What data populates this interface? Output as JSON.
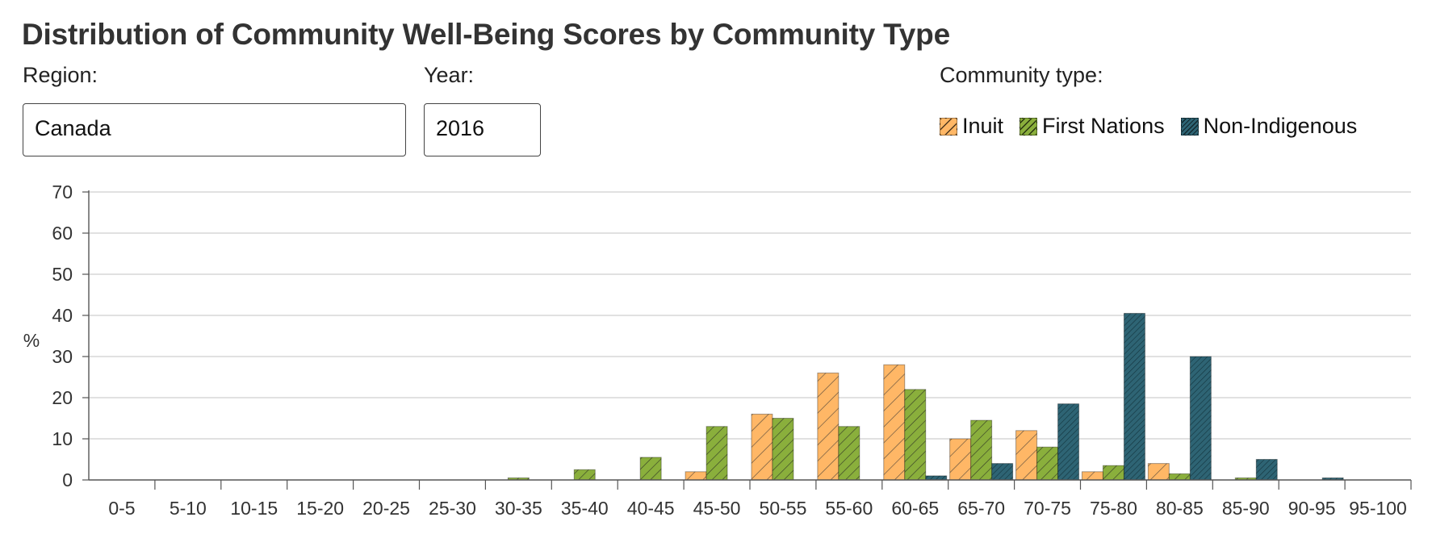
{
  "title": "Distribution of Community Well-Being Scores by Community Type",
  "controls": {
    "region_label": "Region:",
    "region_value": "Canada",
    "year_label": "Year:",
    "year_value": "2016",
    "community_label": "Community type:"
  },
  "colors": {
    "Inuit": "#ffb766",
    "First Nations": "#8aaf3c",
    "Non-Indigenous": "#2e6474"
  },
  "chart_data": {
    "type": "bar",
    "categories": [
      "0-5",
      "5-10",
      "10-15",
      "15-20",
      "20-25",
      "25-30",
      "30-35",
      "35-40",
      "40-45",
      "45-50",
      "50-55",
      "55-60",
      "60-65",
      "65-70",
      "70-75",
      "75-80",
      "80-85",
      "85-90",
      "90-95",
      "95-100"
    ],
    "series": [
      {
        "name": "Inuit",
        "values": [
          0,
          0,
          0,
          0,
          0,
          0,
          0,
          0,
          0,
          2,
          16,
          26,
          28,
          10,
          12,
          2,
          4,
          0,
          0,
          0
        ]
      },
      {
        "name": "First Nations",
        "values": [
          0,
          0,
          0,
          0,
          0,
          0,
          0.5,
          2.5,
          5.5,
          13,
          15,
          13,
          22,
          14.5,
          8,
          3.5,
          1.5,
          0.5,
          0,
          0
        ]
      },
      {
        "name": "Non-Indigenous",
        "values": [
          0,
          0,
          0,
          0,
          0,
          0,
          0,
          0,
          0,
          0,
          0,
          0,
          1,
          4,
          18.5,
          40.5,
          30,
          5,
          0.5,
          0
        ]
      }
    ],
    "ylabel": "%",
    "ylim": [
      0,
      70
    ],
    "yticks": [
      0,
      10,
      20,
      30,
      40,
      50,
      60,
      70
    ],
    "grid": true,
    "legend": "top-right"
  }
}
